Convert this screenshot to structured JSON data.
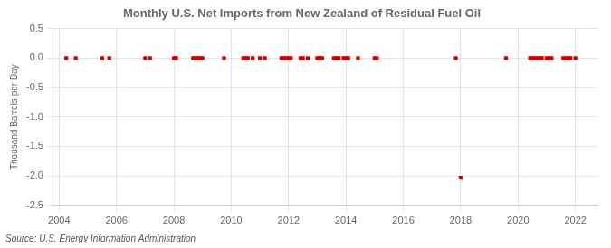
{
  "chart_data": {
    "type": "scatter",
    "title": "Monthly U.S. Net Imports from New Zealand of Residual Fuel Oil",
    "ylabel": "Thousand Barrels per Day",
    "source": "Source: U.S. Energy Information Administration",
    "color": "#cc0000",
    "marker": "square",
    "grid": true,
    "xlim": [
      2003.8,
      2022.8
    ],
    "xticks": [
      2004,
      2006,
      2008,
      2010,
      2012,
      2014,
      2016,
      2018,
      2020,
      2022
    ],
    "ylim": [
      -2.5,
      0.5
    ],
    "yticks": [
      0.5,
      {
        "value": 0.0,
        "label": "0.0"
      },
      -0.5,
      {
        "value": -1.0,
        "label": "-1.0"
      },
      -1.5,
      {
        "value": -2.0,
        "label": "-2.0"
      },
      -2.5
    ],
    "x": [
      2004.25,
      2004.58,
      2005.5,
      2005.75,
      2007.0,
      2007.17,
      2008.0,
      2008.08,
      2008.67,
      2008.75,
      2008.83,
      2008.92,
      2009.0,
      2009.75,
      2010.42,
      2010.5,
      2010.58,
      2010.75,
      2011.0,
      2011.17,
      2011.75,
      2011.83,
      2011.92,
      2012.0,
      2012.08,
      2012.42,
      2012.5,
      2012.67,
      2013.0,
      2013.08,
      2013.17,
      2013.58,
      2013.67,
      2013.75,
      2013.92,
      2014.0,
      2014.08,
      2014.42,
      2015.0,
      2015.08,
      2017.83,
      2018.0,
      2019.58,
      2020.42,
      2020.5,
      2020.58,
      2020.67,
      2020.75,
      2020.83,
      2021.0,
      2021.08,
      2021.17,
      2021.58,
      2021.67,
      2021.75,
      2021.83,
      2022.0
    ],
    "values": [
      0.0,
      0.0,
      0.0,
      0.0,
      0.0,
      0.0,
      0.0,
      0.0,
      0.0,
      0.0,
      0.0,
      0.0,
      0.0,
      0.0,
      0.0,
      0.0,
      0.0,
      0.0,
      0.0,
      0.0,
      0.0,
      0.0,
      0.0,
      0.0,
      0.0,
      0.0,
      0.0,
      0.0,
      0.0,
      0.0,
      0.0,
      0.0,
      0.0,
      0.0,
      0.0,
      0.0,
      0.0,
      0.0,
      0.0,
      0.0,
      0.0,
      -2.03,
      0.0,
      0.0,
      0.0,
      0.0,
      0.0,
      0.0,
      0.0,
      0.0,
      0.0,
      0.0,
      0.0,
      0.0,
      0.0,
      0.0,
      0.0
    ]
  }
}
